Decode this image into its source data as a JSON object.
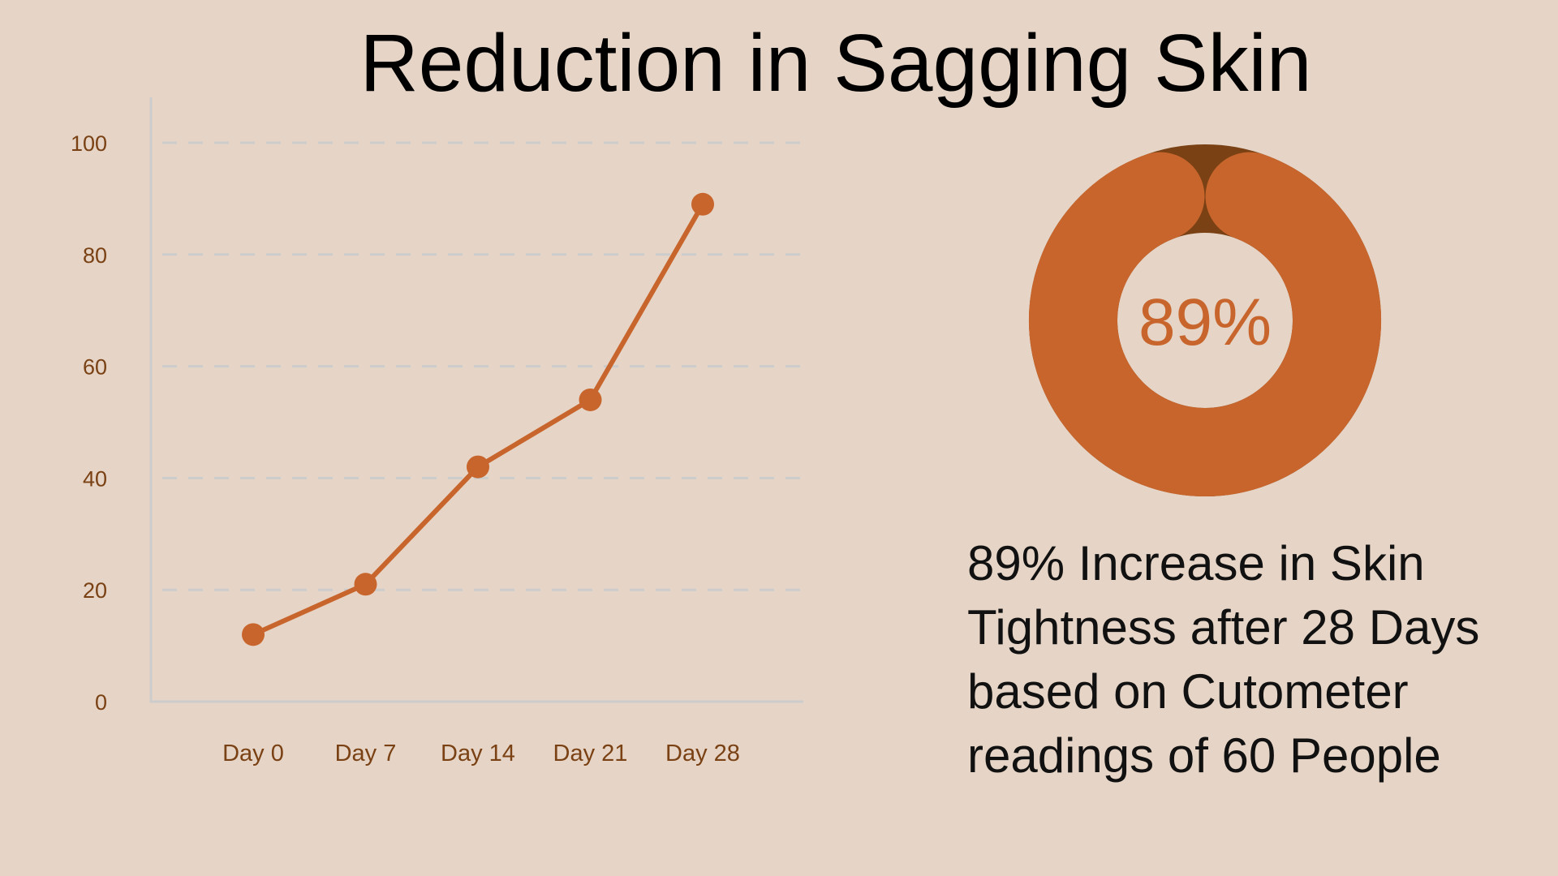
{
  "title": "Reduction in Sagging Skin",
  "colors": {
    "background": "#E6D5C6",
    "accent": "#C8652C",
    "accent_dark": "#7A4114",
    "tick_text": "#7A4114",
    "grid": "#CCCCCC",
    "axis": "#CCCCCC",
    "caption_text": "#111111"
  },
  "chart_data": [
    {
      "type": "line",
      "title": "",
      "xlabel": "",
      "ylabel": "",
      "categories": [
        "Day 0",
        "Day 7",
        "Day 14",
        "Day 21",
        "Day 28"
      ],
      "series": [
        {
          "values": [
            12,
            21,
            42,
            54,
            89
          ]
        }
      ],
      "ylim": [
        0,
        100
      ],
      "yticks": [
        "0",
        "20",
        "40",
        "60",
        "80",
        "100"
      ],
      "grid": true,
      "markers": true
    },
    {
      "type": "pie",
      "style": "donut",
      "center_label": "89%",
      "slices": [
        {
          "value": 89
        },
        {
          "value": 11
        }
      ]
    }
  ],
  "caption": {
    "lines": [
      "89% Increase in Skin",
      "Tightness after 28 Days",
      "based on Cutometer",
      "readings of 60 People"
    ]
  }
}
